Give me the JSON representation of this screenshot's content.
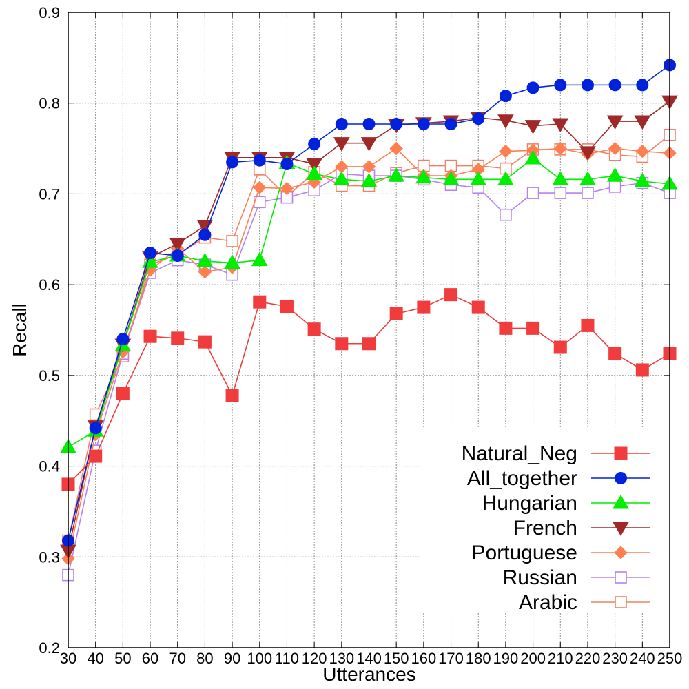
{
  "chart_data": {
    "type": "line",
    "xlabel": "Utterances",
    "ylabel": "Recall",
    "xlim": [
      30,
      250
    ],
    "ylim": [
      0.2,
      0.9
    ],
    "x": [
      30,
      40,
      50,
      60,
      70,
      80,
      90,
      100,
      110,
      120,
      130,
      140,
      150,
      160,
      170,
      180,
      190,
      200,
      210,
      220,
      230,
      240,
      250
    ],
    "x_tick_labels": [
      "30",
      "40",
      "50",
      "60",
      "70",
      "80",
      "90",
      "100",
      "110",
      "120",
      "130",
      "140",
      "150",
      "160",
      "170",
      "180",
      "190",
      "200",
      "210",
      "220",
      "230",
      "240",
      "250"
    ],
    "y_ticks": [
      0.2,
      0.3,
      0.4,
      0.5,
      0.6,
      0.7,
      0.8,
      0.9
    ],
    "y_tick_labels": [
      "0.2",
      "0.3",
      "0.4",
      "0.5",
      "0.6",
      "0.7",
      "0.8",
      "0.9"
    ],
    "grid": true,
    "legend_position": "bottom-right",
    "series": [
      {
        "name": "Natural_Neg",
        "color": "#f03c3c",
        "marker": "square-filled",
        "values": [
          0.38,
          0.411,
          0.48,
          0.543,
          0.541,
          0.537,
          0.478,
          0.581,
          0.576,
          0.551,
          0.535,
          0.535,
          0.568,
          0.575,
          0.589,
          0.575,
          0.552,
          0.552,
          0.531,
          0.555,
          0.524,
          0.506,
          0.524
        ]
      },
      {
        "name": "All_together",
        "color": "#0022dd",
        "marker": "circle-filled",
        "values": [
          0.318,
          0.442,
          0.54,
          0.635,
          0.632,
          0.655,
          0.735,
          0.737,
          0.733,
          0.755,
          0.777,
          0.777,
          0.777,
          0.777,
          0.777,
          0.783,
          0.808,
          0.817,
          0.82,
          0.82,
          0.82,
          0.82,
          0.842
        ]
      },
      {
        "name": "Hungarian",
        "color": "#00ee00",
        "marker": "triangle-up-filled",
        "values": [
          0.421,
          0.439,
          0.533,
          0.625,
          0.632,
          0.626,
          0.624,
          0.627,
          0.734,
          0.722,
          0.716,
          0.714,
          0.72,
          0.718,
          0.716,
          0.716,
          0.716,
          0.739,
          0.716,
          0.716,
          0.72,
          0.714,
          0.711
        ]
      },
      {
        "name": "French",
        "color": "#a02828",
        "marker": "triangle-down-filled",
        "values": [
          0.307,
          0.444,
          0.534,
          0.63,
          0.645,
          0.665,
          0.74,
          0.74,
          0.74,
          0.733,
          0.756,
          0.756,
          0.776,
          0.778,
          0.78,
          0.784,
          0.781,
          0.775,
          0.777,
          0.746,
          0.78,
          0.78,
          0.802
        ]
      },
      {
        "name": "Portuguese",
        "color": "#ff7f50",
        "marker": "diamond-filled",
        "values": [
          0.298,
          0.435,
          0.526,
          0.616,
          0.64,
          0.614,
          0.619,
          0.707,
          0.706,
          0.713,
          0.73,
          0.73,
          0.75,
          0.72,
          0.72,
          0.727,
          0.747,
          0.748,
          0.75,
          0.744,
          0.75,
          0.747,
          0.745
        ]
      },
      {
        "name": "Russian",
        "color": "#b682f0",
        "marker": "square-open",
        "values": [
          0.28,
          0.417,
          0.524,
          0.613,
          0.627,
          0.622,
          0.611,
          0.691,
          0.696,
          0.704,
          0.722,
          0.72,
          0.72,
          0.716,
          0.71,
          0.707,
          0.677,
          0.701,
          0.701,
          0.701,
          0.708,
          0.712,
          0.701
        ]
      },
      {
        "name": "Arabic",
        "color": "#f48064",
        "marker": "square-open",
        "values": [
          0.318,
          0.457,
          0.521,
          0.622,
          0.633,
          0.652,
          0.648,
          0.727,
          0.697,
          0.724,
          0.709,
          0.709,
          0.723,
          0.731,
          0.731,
          0.731,
          0.728,
          0.749,
          0.749,
          0.749,
          0.743,
          0.741,
          0.765
        ]
      }
    ]
  }
}
